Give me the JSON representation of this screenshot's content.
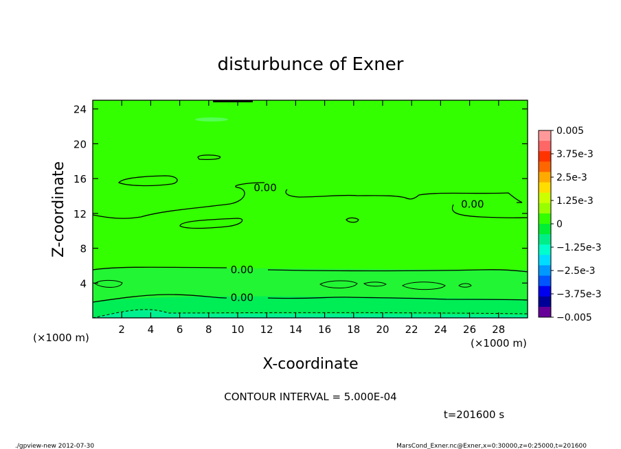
{
  "chart_data": {
    "type": "heatmap",
    "title": "disturbunce of Exner",
    "xlabel": "X-coordinate",
    "ylabel": "Z-coordinate",
    "x_unit": "(×1000 m)",
    "y_unit": "(×1000 m)",
    "xlim": [
      0,
      30
    ],
    "ylim": [
      0,
      25
    ],
    "x_ticks": [
      2,
      4,
      6,
      8,
      10,
      12,
      14,
      16,
      18,
      20,
      22,
      24,
      26,
      28
    ],
    "x_tick_labels": [
      "2",
      "4",
      "6",
      "8",
      "10",
      "12",
      "14",
      "16",
      "18",
      "20",
      "22",
      "24",
      "26",
      "28"
    ],
    "y_ticks": [
      4,
      8,
      12,
      16,
      20,
      24
    ],
    "y_tick_labels": [
      "4",
      "8",
      "12",
      "16",
      "20",
      "24"
    ],
    "contour_interval_label": "CONTOUR INTERVAL = 5.000E-04",
    "time_label": "t=201600 s",
    "contour_labels": [
      {
        "text": "0.00",
        "x": 11.9,
        "z": 14.9
      },
      {
        "text": "0.00",
        "x": 26.2,
        "z": 13.0
      },
      {
        "text": "0.00",
        "x": 10.3,
        "z": 5.5
      },
      {
        "text": "0.00",
        "x": 10.3,
        "z": 2.3
      }
    ],
    "colorbar": {
      "labels": [
        "0.005",
        "3.75e-3",
        "2.5e-3",
        "1.25e-3",
        "0",
        "−1.25e-3",
        "−2.5e-3",
        "−3.75e-3",
        "−0.005"
      ],
      "colors": [
        "#ff9999",
        "#ff6666",
        "#ff3300",
        "#ff6600",
        "#ffaa00",
        "#ffdd00",
        "#ccff00",
        "#99ff00",
        "#33ff00",
        "#00ee33",
        "#00ee88",
        "#00ffcc",
        "#00ddff",
        "#0099ff",
        "#0055ff",
        "#0000ee",
        "#000099",
        "#660099"
      ]
    },
    "grid": false
  },
  "footer": {
    "left": "./gpview-new   2012-07-30",
    "right": "MarsCond_Exner.nc@Exner,x=0:30000,z=0:25000,t=201600"
  }
}
